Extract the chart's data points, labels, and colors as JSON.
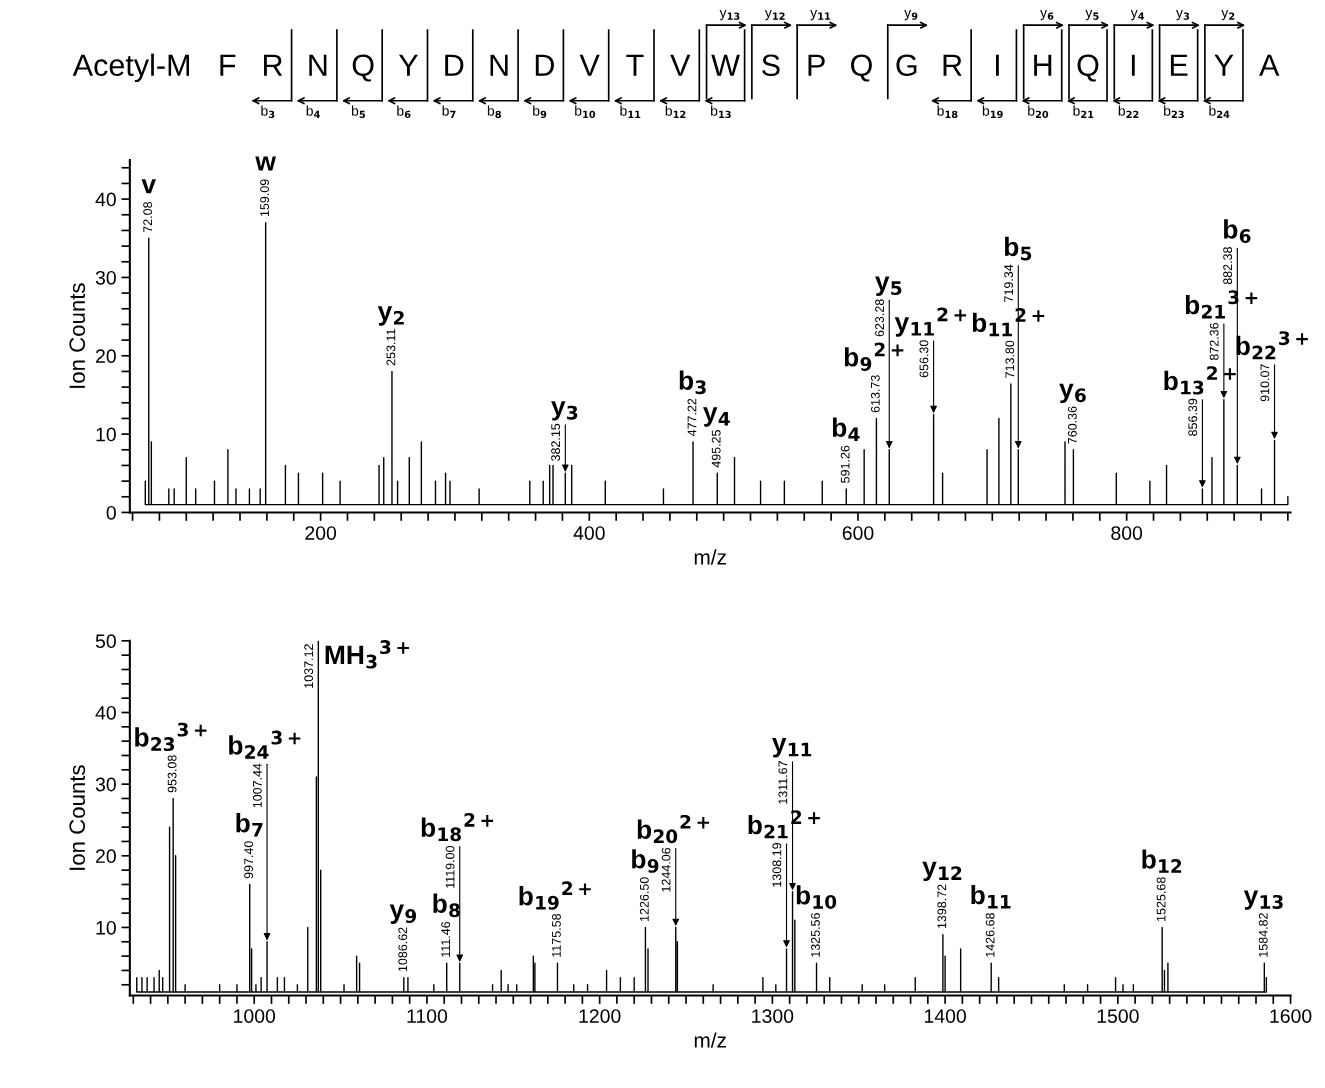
{
  "chart_data": [
    {
      "type": "other",
      "categories": [
        "Acetyl-M",
        "F",
        "R",
        "N",
        "Q",
        "Y",
        "D",
        "N",
        "D",
        "V",
        "T",
        "V",
        "W",
        "S",
        "P",
        "Q",
        "G",
        "R",
        "I",
        "H",
        "Q",
        "I",
        "E",
        "Y",
        "A"
      ],
      "series": [
        {
          "color": "#000000",
          "values": [
            null,
            null,
            null,
            null,
            null,
            null,
            null,
            null,
            null,
            null,
            null,
            null,
            13,
            12,
            11,
            null,
            9,
            null,
            null,
            6,
            5,
            4,
            3,
            2,
            null
          ],
          "value_labels": [
            null,
            null,
            null,
            null,
            null,
            null,
            null,
            null,
            null,
            null,
            null,
            null,
            "y$_{13}$",
            "y$_{12}$",
            "y$_{11}$",
            null,
            "y$_{9}$",
            null,
            null,
            "y$_{6}$",
            "y$_{5}$",
            "y$_{4}$",
            "y$_{3}$",
            "y$_{2}$",
            null
          ]
        },
        {
          "color": "#000000",
          "values": [
            null,
            null,
            3,
            4,
            5,
            6,
            7,
            8,
            9,
            10,
            11,
            12,
            13,
            null,
            null,
            null,
            null,
            18,
            19,
            20,
            21,
            22,
            23,
            24,
            null
          ],
          "value_labels": [
            null,
            null,
            "b$_{3}$",
            "b$_{4}$",
            "b$_{5}$",
            "b$_{6}$",
            "b$_{7}$",
            "b$_{8}$",
            "b$_{9}$",
            "b$_{10}$",
            "b$_{11}$",
            "b$_{12}$",
            "b$_{13}$",
            null,
            null,
            null,
            null,
            "b$_{18}$",
            "b$_{19}$",
            "b$_{20}$",
            "b$_{21}$",
            "b$_{22}$",
            "b$_{23}$",
            "b$_{24}$",
            null
          ]
        }
      ]
    },
    {
      "type": "line",
      "xlabel": "m/z",
      "ylabel": "Ion Counts",
      "xlim": [
        58,
        922
      ],
      "ylim": [
        0,
        45
      ],
      "xticks": [
        {
          "value": 60,
          "label": null
        },
        {
          "value": 80,
          "label": null
        },
        {
          "value": 100,
          "label": null
        },
        {
          "value": 120,
          "label": null
        },
        {
          "value": 140,
          "label": null
        },
        {
          "value": 160,
          "label": null
        },
        {
          "value": 180,
          "label": null
        },
        200,
        {
          "value": 220,
          "label": null
        },
        {
          "value": 240,
          "label": null
        },
        {
          "value": 260,
          "label": null
        },
        {
          "value": 280,
          "label": null
        },
        {
          "value": 300,
          "label": null
        },
        {
          "value": 320,
          "label": null
        },
        {
          "value": 340,
          "label": null
        },
        {
          "value": 360,
          "label": null
        },
        {
          "value": 380,
          "label": null
        },
        400,
        {
          "value": 420,
          "label": null
        },
        {
          "value": 440,
          "label": null
        },
        {
          "value": 460,
          "label": null
        },
        {
          "value": 480,
          "label": null
        },
        {
          "value": 500,
          "label": null
        },
        {
          "value": 520,
          "label": null
        },
        {
          "value": 540,
          "label": null
        },
        {
          "value": 560,
          "label": null
        },
        {
          "value": 580,
          "label": null
        },
        600,
        {
          "value": 620,
          "label": null
        },
        {
          "value": 640,
          "label": null
        },
        {
          "value": 660,
          "label": null
        },
        {
          "value": 680,
          "label": null
        },
        {
          "value": 700,
          "label": null
        },
        {
          "value": 720,
          "label": null
        },
        {
          "value": 740,
          "label": null
        },
        {
          "value": 760,
          "label": null
        },
        {
          "value": 780,
          "label": null
        },
        800,
        {
          "value": 820,
          "label": null
        },
        {
          "value": 840,
          "label": null
        },
        {
          "value": 860,
          "label": null
        },
        {
          "value": 880,
          "label": null
        },
        {
          "value": 900,
          "label": null
        },
        {
          "value": 920,
          "label": null
        }
      ],
      "yticks": [
        0,
        {
          "value": 2,
          "label": null
        },
        {
          "value": 4,
          "label": null
        },
        {
          "value": 6,
          "label": null
        },
        {
          "value": 8,
          "label": null
        },
        10,
        {
          "value": 12,
          "label": null
        },
        {
          "value": 14,
          "label": null
        },
        {
          "value": 16,
          "label": null
        },
        {
          "value": 18,
          "label": null
        },
        20,
        {
          "value": 22,
          "label": null
        },
        {
          "value": 24,
          "label": null
        },
        {
          "value": 26,
          "label": null
        },
        {
          "value": 28,
          "label": null
        },
        30,
        {
          "value": 32,
          "label": null
        },
        {
          "value": 34,
          "label": null
        },
        {
          "value": 36,
          "label": null
        },
        {
          "value": 38,
          "label": null
        },
        40,
        {
          "value": 42,
          "label": null
        },
        {
          "value": 44,
          "label": null
        }
      ],
      "grid": false,
      "marker": "none",
      "line_style": "solid",
      "series": [
        {
          "color": "#000000",
          "x": [
            69.5,
            69.5,
            69.5,
            72.08,
            72.08,
            72.08,
            74,
            74,
            74,
            87,
            87,
            87,
            91,
            91,
            91,
            100,
            100,
            100,
            107,
            107,
            107,
            121,
            121,
            121,
            131,
            131,
            131,
            137,
            137,
            137,
            147,
            147,
            147,
            155,
            155,
            155,
            159.09,
            159.09,
            159.09,
            173.8,
            173.8,
            173.8,
            183.5,
            183.5,
            183.5,
            201.5,
            201.5,
            201.5,
            214.5,
            214.5,
            214.5,
            243.5,
            243.5,
            243.5,
            247,
            247,
            247,
            253.11,
            253.11,
            253.11,
            257.3,
            257.3,
            257.3,
            266,
            266,
            266,
            275,
            275,
            275,
            285.5,
            285.5,
            285.5,
            293,
            293,
            293,
            296.3,
            296.3,
            296.3,
            318,
            318,
            318,
            355.7,
            355.7,
            355.7,
            365.7,
            365.7,
            365.7,
            370.5,
            370.5,
            370.5,
            373,
            373,
            373,
            382.15,
            382.15,
            382.15,
            386.9,
            386.9,
            386.9,
            411.9,
            411.9,
            411.9,
            455.2,
            455.2,
            455.2,
            477.22,
            477.22,
            477.22,
            495.25,
            495.25,
            495.25,
            508.1,
            508.1,
            508.1,
            527.5,
            527.5,
            527.5,
            545.2,
            545.2,
            545.2,
            573.4,
            573.4,
            573.4,
            591.26,
            591.26,
            591.26,
            604.6,
            604.6,
            604.6,
            613.73,
            613.73,
            613.73,
            623.28,
            623.28,
            623.28,
            656.3,
            656.3,
            656.3,
            663,
            663,
            663,
            696.1,
            696.1,
            696.1,
            704.9,
            704.9,
            704.9,
            713.8,
            713.8,
            713.8,
            719.34,
            719.34,
            719.34,
            754.1,
            754.1,
            754.1,
            760.36,
            760.36,
            760.36,
            792.3,
            792.3,
            792.3,
            817.3,
            817.3,
            817.3,
            829.7,
            829.7,
            829.7,
            856.39,
            856.39,
            856.39,
            863.5,
            863.5,
            863.5,
            872.36,
            872.36,
            872.36,
            882.38,
            882.38,
            882.38,
            900.4,
            900.4,
            900.4,
            910.07,
            910.07,
            910.07,
            920,
            920,
            920
          ],
          "values": [
            1,
            4,
            1,
            1,
            35,
            1,
            1,
            9,
            1,
            1,
            3,
            1,
            1,
            3,
            1,
            1,
            7,
            1,
            1,
            3,
            1,
            1,
            4,
            1,
            1,
            8,
            1,
            1,
            3,
            1,
            1,
            3,
            1,
            1,
            3,
            1,
            1,
            37,
            1,
            1,
            6,
            1,
            1,
            5,
            1,
            1,
            5,
            1,
            1,
            4,
            1,
            1,
            6,
            1,
            1,
            7,
            1,
            1,
            18,
            1,
            1,
            4,
            1,
            1,
            7,
            1,
            1,
            9,
            1,
            1,
            4,
            1,
            1,
            5,
            1,
            1,
            4,
            1,
            1,
            3,
            1,
            1,
            4,
            1,
            1,
            4,
            1,
            1,
            6,
            1,
            1,
            6,
            1,
            1,
            5,
            1,
            1,
            6,
            1,
            1,
            4,
            1,
            1,
            3,
            1,
            1,
            9,
            1,
            1,
            5,
            1,
            1,
            7,
            1,
            1,
            4,
            1,
            1,
            4,
            1,
            1,
            4,
            1,
            1,
            3,
            1,
            1,
            8,
            1,
            1,
            12,
            1,
            1,
            8,
            1,
            1,
            12.5,
            1,
            1,
            5,
            1,
            1,
            8,
            1,
            1,
            12,
            1,
            1,
            16.4,
            1,
            1,
            8,
            1,
            1,
            9,
            1,
            1,
            8,
            1,
            1,
            5,
            1,
            1,
            4,
            1,
            1,
            6,
            1,
            1,
            3,
            1,
            1,
            7,
            1,
            1,
            14.4,
            1,
            1,
            6,
            1,
            1,
            3,
            1,
            1,
            9.2,
            1,
            1,
            2,
            1
          ]
        }
      ],
      "annotations": [
        {
          "text": "72.08",
          "x": 72.08,
          "y": 35
        },
        {
          "text": "v",
          "x": 72.08,
          "y": 35
        },
        {
          "text": "159.09",
          "x": 159.09,
          "y": 37
        },
        {
          "text": "w",
          "x": 159.09,
          "y": 37
        },
        {
          "text": "253.11",
          "x": 253.11,
          "y": 18
        },
        {
          "text": "y$_{2}$",
          "x": 253.11,
          "y": 18
        },
        {
          "text": "382.15",
          "x": 382.15,
          "y": 5
        },
        {
          "text": "y$_{3}$",
          "x": 382.15,
          "y": 5
        },
        {
          "text": "477.22",
          "x": 477.22,
          "y": 9
        },
        {
          "text": "b$_{3}$",
          "x": 477.22,
          "y": 9
        },
        {
          "text": "495.25",
          "x": 495.25,
          "y": 5
        },
        {
          "text": "y$_{4}$",
          "x": 495.25,
          "y": 5
        },
        {
          "text": "591.26",
          "x": 591.26,
          "y": 3
        },
        {
          "text": "b$_{4}$",
          "x": 591.26,
          "y": 3
        },
        {
          "text": "613.73",
          "x": 613.73,
          "y": 12
        },
        {
          "text": "b$_{9}$$^{2+}$",
          "x": 613.73,
          "y": 12
        },
        {
          "text": "623.28",
          "x": 623.28,
          "y": 8
        },
        {
          "text": "y$_{5}$",
          "x": 623.28,
          "y": 8
        },
        {
          "text": "656.30",
          "x": 656.3,
          "y": 12.5
        },
        {
          "text": "y$_{11}$$^{2+}$",
          "x": 656.3,
          "y": 12.5
        },
        {
          "text": "713.80",
          "x": 713.8,
          "y": 16.4
        },
        {
          "text": "b$_{11}$$^{2+}$",
          "x": 713.8,
          "y": 16.4
        },
        {
          "text": "719.34",
          "x": 719.34,
          "y": 8
        },
        {
          "text": "b$_{5}$",
          "x": 719.34,
          "y": 8
        },
        {
          "text": "760.36",
          "x": 760.36,
          "y": 8
        },
        {
          "text": "y$_{6}$",
          "x": 760.36,
          "y": 8
        },
        {
          "text": "856.39",
          "x": 856.39,
          "y": 3
        },
        {
          "text": "b$_{13}$$^{2+}$",
          "x": 856.39,
          "y": 3
        },
        {
          "text": "872.36",
          "x": 872.36,
          "y": 14.4
        },
        {
          "text": "b$_{21}$$^{3+}$",
          "x": 872.36,
          "y": 14.4
        },
        {
          "text": "882.38",
          "x": 882.38,
          "y": 6
        },
        {
          "text": "b$_{6}$",
          "x": 882.38,
          "y": 6
        },
        {
          "text": "910.07",
          "x": 910.07,
          "y": 9.2
        },
        {
          "text": "b$_{22}$$^{3+}$",
          "x": 910.07,
          "y": 9.2
        }
      ]
    },
    {
      "type": "line",
      "xlabel": "m/z",
      "ylabel": "Ion Counts",
      "xlim": [
        928,
        1600
      ],
      "ylim": [
        0.5,
        50
      ],
      "xticks": [
        {
          "value": 930,
          "label": null
        },
        {
          "value": 940,
          "label": null
        },
        {
          "value": 950,
          "label": null
        },
        {
          "value": 960,
          "label": null
        },
        {
          "value": 970,
          "label": null
        },
        {
          "value": 980,
          "label": null
        },
        {
          "value": 990,
          "label": null
        },
        1000,
        {
          "value": 1010,
          "label": null
        },
        {
          "value": 1020,
          "label": null
        },
        {
          "value": 1030,
          "label": null
        },
        {
          "value": 1040,
          "label": null
        },
        {
          "value": 1050,
          "label": null
        },
        {
          "value": 1060,
          "label": null
        },
        {
          "value": 1070,
          "label": null
        },
        {
          "value": 1080,
          "label": null
        },
        {
          "value": 1090,
          "label": null
        },
        1100,
        {
          "value": 1110,
          "label": null
        },
        {
          "value": 1120,
          "label": null
        },
        {
          "value": 1130,
          "label": null
        },
        {
          "value": 1140,
          "label": null
        },
        {
          "value": 1150,
          "label": null
        },
        {
          "value": 1160,
          "label": null
        },
        {
          "value": 1170,
          "label": null
        },
        {
          "value": 1180,
          "label": null
        },
        {
          "value": 1190,
          "label": null
        },
        1200,
        {
          "value": 1210,
          "label": null
        },
        {
          "value": 1220,
          "label": null
        },
        {
          "value": 1230,
          "label": null
        },
        {
          "value": 1240,
          "label": null
        },
        {
          "value": 1250,
          "label": null
        },
        {
          "value": 1260,
          "label": null
        },
        {
          "value": 1270,
          "label": null
        },
        {
          "value": 1280,
          "label": null
        },
        {
          "value": 1290,
          "label": null
        },
        1300,
        {
          "value": 1310,
          "label": null
        },
        {
          "value": 1320,
          "label": null
        },
        {
          "value": 1330,
          "label": null
        },
        {
          "value": 1340,
          "label": null
        },
        {
          "value": 1350,
          "label": null
        },
        {
          "value": 1360,
          "label": null
        },
        {
          "value": 1370,
          "label": null
        },
        {
          "value": 1380,
          "label": null
        },
        {
          "value": 1390,
          "label": null
        },
        1400,
        {
          "value": 1410,
          "label": null
        },
        {
          "value": 1420,
          "label": null
        },
        {
          "value": 1430,
          "label": null
        },
        {
          "value": 1440,
          "label": null
        },
        {
          "value": 1450,
          "label": null
        },
        {
          "value": 1460,
          "label": null
        },
        {
          "value": 1470,
          "label": null
        },
        {
          "value": 1480,
          "label": null
        },
        {
          "value": 1490,
          "label": null
        },
        1500,
        {
          "value": 1510,
          "label": null
        },
        {
          "value": 1520,
          "label": null
        },
        {
          "value": 1530,
          "label": null
        },
        {
          "value": 1540,
          "label": null
        },
        {
          "value": 1550,
          "label": null
        },
        {
          "value": 1560,
          "label": null
        },
        {
          "value": 1570,
          "label": null
        },
        {
          "value": 1580,
          "label": null
        },
        {
          "value": 1590,
          "label": null
        },
        1600
      ],
      "yticks": [
        {
          "value": 2,
          "label": null
        },
        {
          "value": 4,
          "label": null
        },
        {
          "value": 6,
          "label": null
        },
        {
          "value": 8,
          "label": null
        },
        10,
        {
          "value": 12,
          "label": null
        },
        {
          "value": 14,
          "label": null
        },
        {
          "value": 16,
          "label": null
        },
        {
          "value": 18,
          "label": null
        },
        20,
        {
          "value": 22,
          "label": null
        },
        {
          "value": 24,
          "label": null
        },
        {
          "value": 26,
          "label": null
        },
        {
          "value": 28,
          "label": null
        },
        30,
        {
          "value": 32,
          "label": null
        },
        {
          "value": 34,
          "label": null
        },
        {
          "value": 36,
          "label": null
        },
        {
          "value": 38,
          "label": null
        },
        40,
        {
          "value": 42,
          "label": null
        },
        {
          "value": 44,
          "label": null
        },
        {
          "value": 46,
          "label": null
        },
        {
          "value": 48,
          "label": null
        },
        50
      ],
      "grid": false,
      "marker": "none",
      "line_style": "solid",
      "series": [
        {
          "color": "#000000",
          "x": [
            932,
            932,
            932,
            935,
            935,
            935,
            938,
            938,
            938,
            942,
            942,
            942,
            945,
            945,
            945,
            947,
            947,
            947,
            951,
            951,
            951,
            953.08,
            953.08,
            953.08,
            954.5,
            954.5,
            954.5,
            960,
            960,
            960,
            980,
            980,
            980,
            990,
            990,
            990,
            997.4,
            997.4,
            997.4,
            998.5,
            998.5,
            998.5,
            1001,
            1001,
            1001,
            1004,
            1004,
            1004,
            1007.44,
            1007.44,
            1007.44,
            1013.4,
            1013.4,
            1013.4,
            1017.5,
            1017.5,
            1017.5,
            1025,
            1025,
            1025,
            1031,
            1031,
            1031,
            1036,
            1036,
            1036,
            1037.12,
            1037.12,
            1037.12,
            1038.5,
            1038.5,
            1038.5,
            1052,
            1052,
            1052,
            1059.3,
            1059.3,
            1059.3,
            1061,
            1061,
            1061,
            1086.62,
            1086.62,
            1086.62,
            1089,
            1089,
            1089,
            1104,
            1104,
            1104,
            1111.46,
            1111.46,
            1111.46,
            1119,
            1119,
            1119,
            1138,
            1138,
            1138,
            1143,
            1143,
            1143,
            1147,
            1147,
            1147,
            1152,
            1152,
            1152,
            1161.6,
            1161.6,
            1161.6,
            1162.5,
            1162.5,
            1162.5,
            1175.58,
            1175.58,
            1175.58,
            1185,
            1185,
            1185,
            1193,
            1193,
            1193,
            1204,
            1204,
            1204,
            1212,
            1212,
            1212,
            1220,
            1220,
            1220,
            1226.5,
            1226.5,
            1226.5,
            1228,
            1228,
            1228,
            1244.06,
            1244.06,
            1244.06,
            1245,
            1245,
            1245,
            1265.7,
            1265.7,
            1265.7,
            1294.5,
            1294.5,
            1294.5,
            1302,
            1302,
            1302,
            1308.19,
            1308.19,
            1308.19,
            1311.67,
            1311.67,
            1311.67,
            1313,
            1313,
            1313,
            1325.56,
            1325.56,
            1325.56,
            1333.2,
            1333.2,
            1333.2,
            1352,
            1352,
            1352,
            1365,
            1365,
            1365,
            1382.7,
            1382.7,
            1382.7,
            1398.72,
            1398.72,
            1398.72,
            1400,
            1400,
            1400,
            1409,
            1409,
            1409,
            1426.68,
            1426.68,
            1426.68,
            1431,
            1431,
            1431,
            1469,
            1469,
            1469,
            1482.5,
            1482.5,
            1482.5,
            1498.7,
            1498.7,
            1498.7,
            1503,
            1503,
            1503,
            1509,
            1509,
            1509,
            1525.68,
            1525.68,
            1525.68,
            1527,
            1527,
            1527,
            1529,
            1529,
            1529,
            1584.82,
            1584.82,
            1584.82,
            1586,
            1586,
            1586
          ],
          "values": [
            1,
            3,
            1,
            1,
            3,
            1,
            1,
            3,
            1,
            1,
            3,
            1,
            1,
            4,
            1,
            1,
            3,
            1,
            1,
            24,
            1,
            1,
            28,
            1,
            1,
            20,
            1,
            1,
            2,
            1,
            1,
            2,
            1,
            1,
            2,
            1,
            1,
            16,
            1,
            1,
            7,
            1,
            1,
            2,
            1,
            1,
            3,
            1,
            1,
            8,
            1,
            1,
            3,
            1,
            1,
            3,
            1,
            1,
            2,
            1,
            1,
            10,
            1,
            1,
            31,
            1,
            1,
            50,
            1,
            1,
            18,
            1,
            1,
            2,
            1,
            1,
            6,
            1,
            1,
            5,
            1,
            1,
            3,
            1,
            1,
            3,
            1,
            1,
            2,
            1,
            1,
            5,
            1,
            1,
            5,
            1,
            1,
            2,
            1,
            1,
            4,
            1,
            1,
            2,
            1,
            1,
            2,
            1,
            1,
            6,
            1,
            1,
            5,
            1,
            1,
            5,
            1,
            1,
            2,
            1,
            1,
            2,
            1,
            1,
            4,
            1,
            1,
            3,
            1,
            1,
            3,
            1,
            1,
            10,
            1,
            1,
            7,
            1,
            1,
            10,
            1,
            1,
            8,
            1,
            1,
            2,
            1,
            1,
            3,
            1,
            1,
            2,
            1,
            1,
            7,
            1,
            1,
            15,
            1,
            1,
            11,
            1,
            1,
            5,
            1,
            1,
            3,
            1,
            1,
            2,
            1,
            1,
            2,
            1,
            1,
            3,
            1,
            1,
            9,
            1,
            1,
            6,
            1,
            1,
            7,
            1,
            1,
            5,
            1,
            1,
            3,
            1,
            1,
            2,
            1,
            1,
            2,
            1,
            1,
            3,
            1,
            1,
            2,
            1,
            1,
            2,
            1,
            1,
            10,
            1,
            1,
            4,
            1,
            1,
            5,
            1,
            1,
            5,
            1,
            1,
            3,
            1
          ]
        }
      ],
      "annotations": [
        {
          "text": "953.08",
          "x": 953.08,
          "y": 28
        },
        {
          "text": "b$_{23}$$^{3+}$",
          "x": 953.08,
          "y": 28
        },
        {
          "text": "997.40",
          "x": 997.4,
          "y": 16
        },
        {
          "text": "b$_{7}$",
          "x": 997.4,
          "y": 16
        },
        {
          "text": "1007.44",
          "x": 1007.44,
          "y": 8
        },
        {
          "text": "b$_{24}$$^{3+}$",
          "x": 1007.44,
          "y": 8
        },
        {
          "text": "1037.12",
          "x": 1037.12,
          "y": 50
        },
        {
          "text": "MH$_{3}$$^{3+}$",
          "x": 1037.12,
          "y": 50
        },
        {
          "text": "1086.62",
          "x": 1086.62,
          "y": 3
        },
        {
          "text": "y$_{9}$",
          "x": 1086.62,
          "y": 3
        },
        {
          "text": "111.46",
          "x": 1111.46,
          "y": 5
        },
        {
          "text": "b$_{8}$",
          "x": 1111.46,
          "y": 5
        },
        {
          "text": "1119.00",
          "x": 1119,
          "y": 5
        },
        {
          "text": "b$_{18}$$^{2+}$",
          "x": 1119,
          "y": 5
        },
        {
          "text": "1175.58",
          "x": 1175.58,
          "y": 5
        },
        {
          "text": "b$_{19}$$^{2+}$",
          "x": 1175.58,
          "y": 5
        },
        {
          "text": "1226.50",
          "x": 1226.5,
          "y": 10
        },
        {
          "text": "b$_{9}$",
          "x": 1226.5,
          "y": 10
        },
        {
          "text": "1244.06",
          "x": 1244.06,
          "y": 10
        },
        {
          "text": "b$_{20}$$^{2+}$",
          "x": 1244.06,
          "y": 10
        },
        {
          "text": "1308.19",
          "x": 1308.19,
          "y": 7
        },
        {
          "text": "b$_{21}$$^{2+}$",
          "x": 1308.19,
          "y": 7
        },
        {
          "text": "1311.67",
          "x": 1311.67,
          "y": 15
        },
        {
          "text": "y$_{11}$",
          "x": 1311.67,
          "y": 15
        },
        {
          "text": "1325.56",
          "x": 1325.56,
          "y": 5
        },
        {
          "text": "b$_{10}$",
          "x": 1325.56,
          "y": 5
        },
        {
          "text": "1398.72",
          "x": 1398.72,
          "y": 9
        },
        {
          "text": "y$_{12}$",
          "x": 1398.72,
          "y": 9
        },
        {
          "text": "1426.68",
          "x": 1426.68,
          "y": 5
        },
        {
          "text": "b$_{11}$",
          "x": 1426.68,
          "y": 5
        },
        {
          "text": "1525.68",
          "x": 1525.68,
          "y": 10
        },
        {
          "text": "b$_{12}$",
          "x": 1525.68,
          "y": 10
        },
        {
          "text": "1584.82",
          "x": 1584.82,
          "y": 5
        },
        {
          "text": "y$_{13}$",
          "x": 1584.82,
          "y": 5
        }
      ]
    }
  ]
}
